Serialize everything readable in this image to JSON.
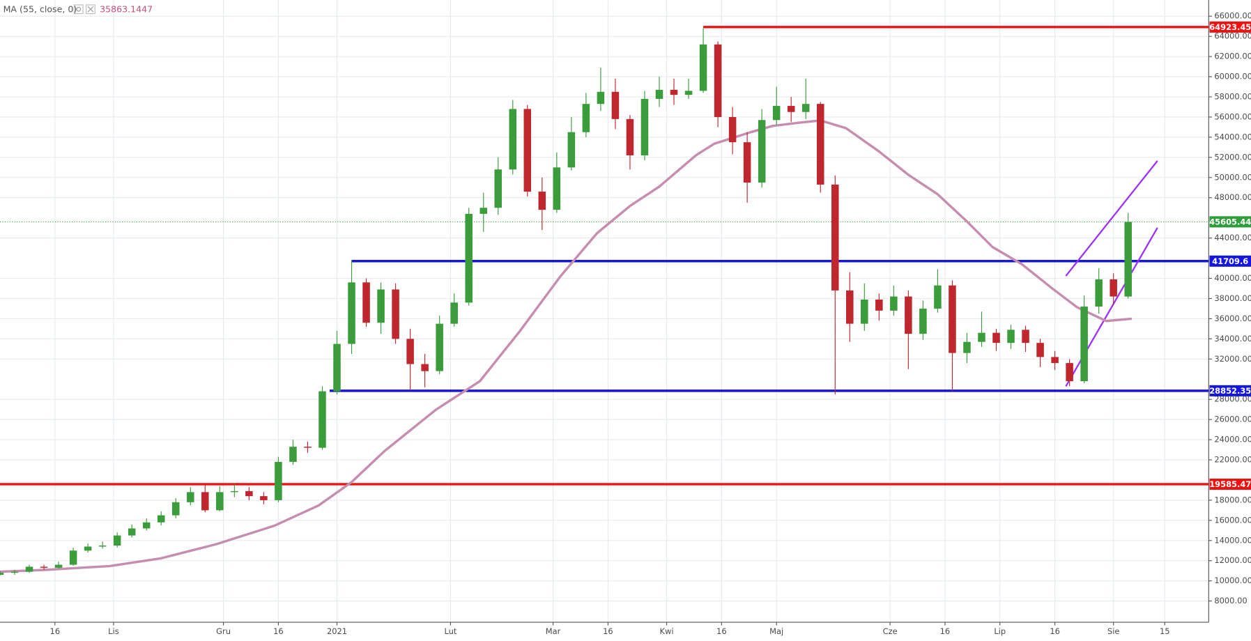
{
  "chart_data": {
    "type": "candlestick",
    "indicator": {
      "label": "MA (55, close, 0)",
      "value": 35863.1447
    },
    "up_color": "#3a9c3a",
    "down_color": "#c0262d",
    "grid": true,
    "xlim": [
      0,
      330
    ],
    "ylim": [
      5900,
      67600
    ],
    "xticks": [
      {
        "value": 15,
        "label": "16"
      },
      {
        "value": 31,
        "label": "Lis"
      },
      {
        "value": 61,
        "label": "Gru"
      },
      {
        "value": 76,
        "label": "16"
      },
      {
        "value": 92,
        "label": "2021"
      },
      {
        "value": 123,
        "label": "Lut"
      },
      {
        "value": 151,
        "label": "Mar"
      },
      {
        "value": 166,
        "label": "16"
      },
      {
        "value": 182,
        "label": "Kwi"
      },
      {
        "value": 197,
        "label": "16"
      },
      {
        "value": 212,
        "label": "Maj"
      },
      {
        "value": 243,
        "label": "Cze"
      },
      {
        "value": 258,
        "label": "16"
      },
      {
        "value": 273,
        "label": "Lip"
      },
      {
        "value": 288,
        "label": "16"
      },
      {
        "value": 304,
        "label": "Sie"
      },
      {
        "value": 318,
        "label": "15"
      }
    ],
    "yticks": [
      {
        "value": 8000,
        "label": "8000.00"
      },
      {
        "value": 10000,
        "label": "10000.00"
      },
      {
        "value": 12000,
        "label": "12000.00"
      },
      {
        "value": 14000,
        "label": "14000.00"
      },
      {
        "value": 16000,
        "label": "16000.00"
      },
      {
        "value": 18000,
        "label": "18000.00"
      },
      {
        "value": 22000,
        "label": "22000.00"
      },
      {
        "value": 24000,
        "label": "24000.00"
      },
      {
        "value": 26000,
        "label": "26000.00"
      },
      {
        "value": 28000,
        "label": "28000.00"
      },
      {
        "value": 32000,
        "label": "32000.00"
      },
      {
        "value": 34000,
        "label": "34000.00"
      },
      {
        "value": 36000,
        "label": "36000.00"
      },
      {
        "value": 38000,
        "label": "38000.00"
      },
      {
        "value": 40000,
        "label": "40000.00"
      },
      {
        "value": 44000,
        "label": "44000.00"
      },
      {
        "value": 48000,
        "label": "48000.00"
      },
      {
        "value": 50000,
        "label": "50000.00"
      },
      {
        "value": 52000,
        "label": "52000.00"
      },
      {
        "value": 54000,
        "label": "54000.00"
      },
      {
        "value": 56000,
        "label": "56000.00"
      },
      {
        "value": 58000,
        "label": "58000.00"
      },
      {
        "value": 60000,
        "label": "60000.00"
      },
      {
        "value": 62000,
        "label": "62000.00"
      },
      {
        "value": 64000,
        "label": "64000.00"
      },
      {
        "value": 66000,
        "label": "66000.00"
      }
    ],
    "x": [
      0,
      4,
      8,
      12,
      16,
      20,
      24,
      28,
      32,
      36,
      40,
      44,
      48,
      52,
      56,
      60,
      64,
      68,
      72,
      76,
      80,
      84,
      88,
      92,
      96,
      100,
      104,
      108,
      112,
      116,
      120,
      124,
      128,
      132,
      136,
      140,
      144,
      148,
      152,
      156,
      160,
      164,
      168,
      172,
      176,
      180,
      184,
      188,
      192,
      196,
      200,
      204,
      208,
      212,
      216,
      220,
      224,
      228,
      232,
      236,
      240,
      244,
      248,
      252,
      256,
      260,
      264,
      268,
      272,
      276,
      280,
      284,
      288,
      292,
      296,
      300,
      304,
      308
    ],
    "open": [
      10600,
      10800,
      10900,
      11400,
      11300,
      11600,
      13000,
      13400,
      13500,
      14500,
      15200,
      15800,
      16500,
      17800,
      18800,
      17000,
      18800,
      18900,
      18400,
      18000,
      21800,
      23300,
      23200,
      28800,
      33500,
      39600,
      35600,
      38900,
      34000,
      31500,
      30800,
      35500,
      37600,
      46400,
      47000,
      50800,
      56800,
      48600,
      46800,
      51000,
      54500,
      57300,
      58500,
      55800,
      52200,
      57800,
      58700,
      58200,
      58600,
      63200,
      56000,
      53500,
      49500,
      55700,
      57100,
      56500,
      57300,
      49300,
      38800,
      35500,
      37900,
      36800,
      38200,
      34500,
      37000,
      39300,
      32600,
      33700,
      34600,
      33600,
      34900,
      33600,
      32200,
      31600,
      29800,
      37200,
      39900,
      38200
    ],
    "high": [
      11000,
      11100,
      11600,
      11600,
      11900,
      13300,
      13700,
      13900,
      14800,
      15600,
      16200,
      16900,
      18200,
      19300,
      19500,
      19400,
      19600,
      19300,
      18800,
      22300,
      24000,
      23800,
      29300,
      34800,
      41800,
      40000,
      39600,
      39500,
      35000,
      32500,
      36300,
      38500,
      47000,
      48500,
      52000,
      57700,
      57200,
      50000,
      52500,
      56000,
      58400,
      60900,
      59800,
      56200,
      58600,
      60000,
      59800,
      59800,
      64800,
      63500,
      57000,
      54500,
      56800,
      59000,
      58000,
      59800,
      57500,
      50200,
      40600,
      39500,
      38500,
      39300,
      38800,
      37800,
      40900,
      39800,
      34600,
      36700,
      35000,
      35400,
      35300,
      34000,
      32800,
      32000,
      38300,
      41000,
      40500,
      46500
    ],
    "low": [
      10500,
      10600,
      10800,
      11100,
      11200,
      11500,
      12800,
      13200,
      13300,
      14300,
      15000,
      15500,
      16200,
      17500,
      16800,
      16900,
      18300,
      18000,
      17600,
      17800,
      21500,
      22700,
      23000,
      28500,
      32500,
      35200,
      34500,
      33500,
      28900,
      29200,
      30500,
      35200,
      37300,
      44600,
      46300,
      50300,
      48100,
      44800,
      46500,
      50700,
      54000,
      56600,
      54800,
      50800,
      51700,
      57000,
      57200,
      57800,
      58400,
      55000,
      52300,
      47500,
      49000,
      55200,
      55500,
      55800,
      48500,
      28500,
      33700,
      34800,
      35800,
      36300,
      31000,
      33900,
      36600,
      28800,
      31600,
      33200,
      32800,
      33000,
      32700,
      31200,
      30900,
      29300,
      29600,
      36500,
      37400,
      38000
    ],
    "close": [
      10800,
      10900,
      11400,
      11300,
      11600,
      13000,
      13400,
      13500,
      14500,
      15200,
      15800,
      16500,
      17800,
      18800,
      17000,
      18800,
      18900,
      18400,
      18000,
      21800,
      23300,
      23200,
      28800,
      33500,
      39600,
      35600,
      38900,
      34000,
      31500,
      30800,
      35500,
      37600,
      46400,
      47000,
      50800,
      56800,
      48600,
      46800,
      51000,
      54500,
      57300,
      58500,
      55800,
      52200,
      57800,
      58700,
      58200,
      58600,
      63200,
      56000,
      53500,
      49500,
      55700,
      57100,
      56500,
      57300,
      49300,
      38800,
      35500,
      37900,
      36800,
      38200,
      34500,
      37000,
      39300,
      32600,
      33700,
      34600,
      33600,
      34900,
      33600,
      32200,
      31600,
      29800,
      37200,
      39900,
      38200,
      45600
    ],
    "ma": {
      "color": "#c58db0",
      "x": [
        0,
        13,
        30,
        44,
        59,
        75,
        87,
        96,
        105,
        119,
        131,
        142,
        153,
        163,
        172,
        180,
        190,
        195,
        205,
        211,
        218,
        224,
        231,
        240,
        248,
        256,
        264,
        271,
        279,
        287,
        294,
        302,
        309
      ],
      "values": [
        10900,
        11100,
        11470,
        12240,
        13630,
        15480,
        17480,
        19800,
        22880,
        26970,
        29800,
        34800,
        40200,
        44480,
        47180,
        49100,
        52200,
        53350,
        54500,
        55120,
        55430,
        55660,
        54890,
        52580,
        50270,
        48340,
        45640,
        43100,
        41400,
        39080,
        37150,
        35770,
        36000
      ]
    },
    "levels": [
      {
        "value": 64923.45,
        "color": "#f01010",
        "start": 192,
        "style": "solid"
      },
      {
        "value": 45605.44,
        "color": "#2e9e3a",
        "start": 0,
        "style": "dotted"
      },
      {
        "value": 41709.6,
        "color": "#1515e0",
        "start": 96,
        "style": "solid"
      },
      {
        "value": 28852.35,
        "color": "#1515e0",
        "start": 90,
        "style": "solid"
      },
      {
        "value": 19585.47,
        "color": "#f01010",
        "start": 0,
        "style": "solid"
      }
    ],
    "trendlines": [
      {
        "color": "#9b30ff",
        "x": [
          291,
          316
        ],
        "values": [
          40238,
          51654
        ]
      },
      {
        "color": "#9b30ff",
        "x": [
          291,
          316
        ],
        "values": [
          29286,
          45020
        ]
      }
    ]
  }
}
